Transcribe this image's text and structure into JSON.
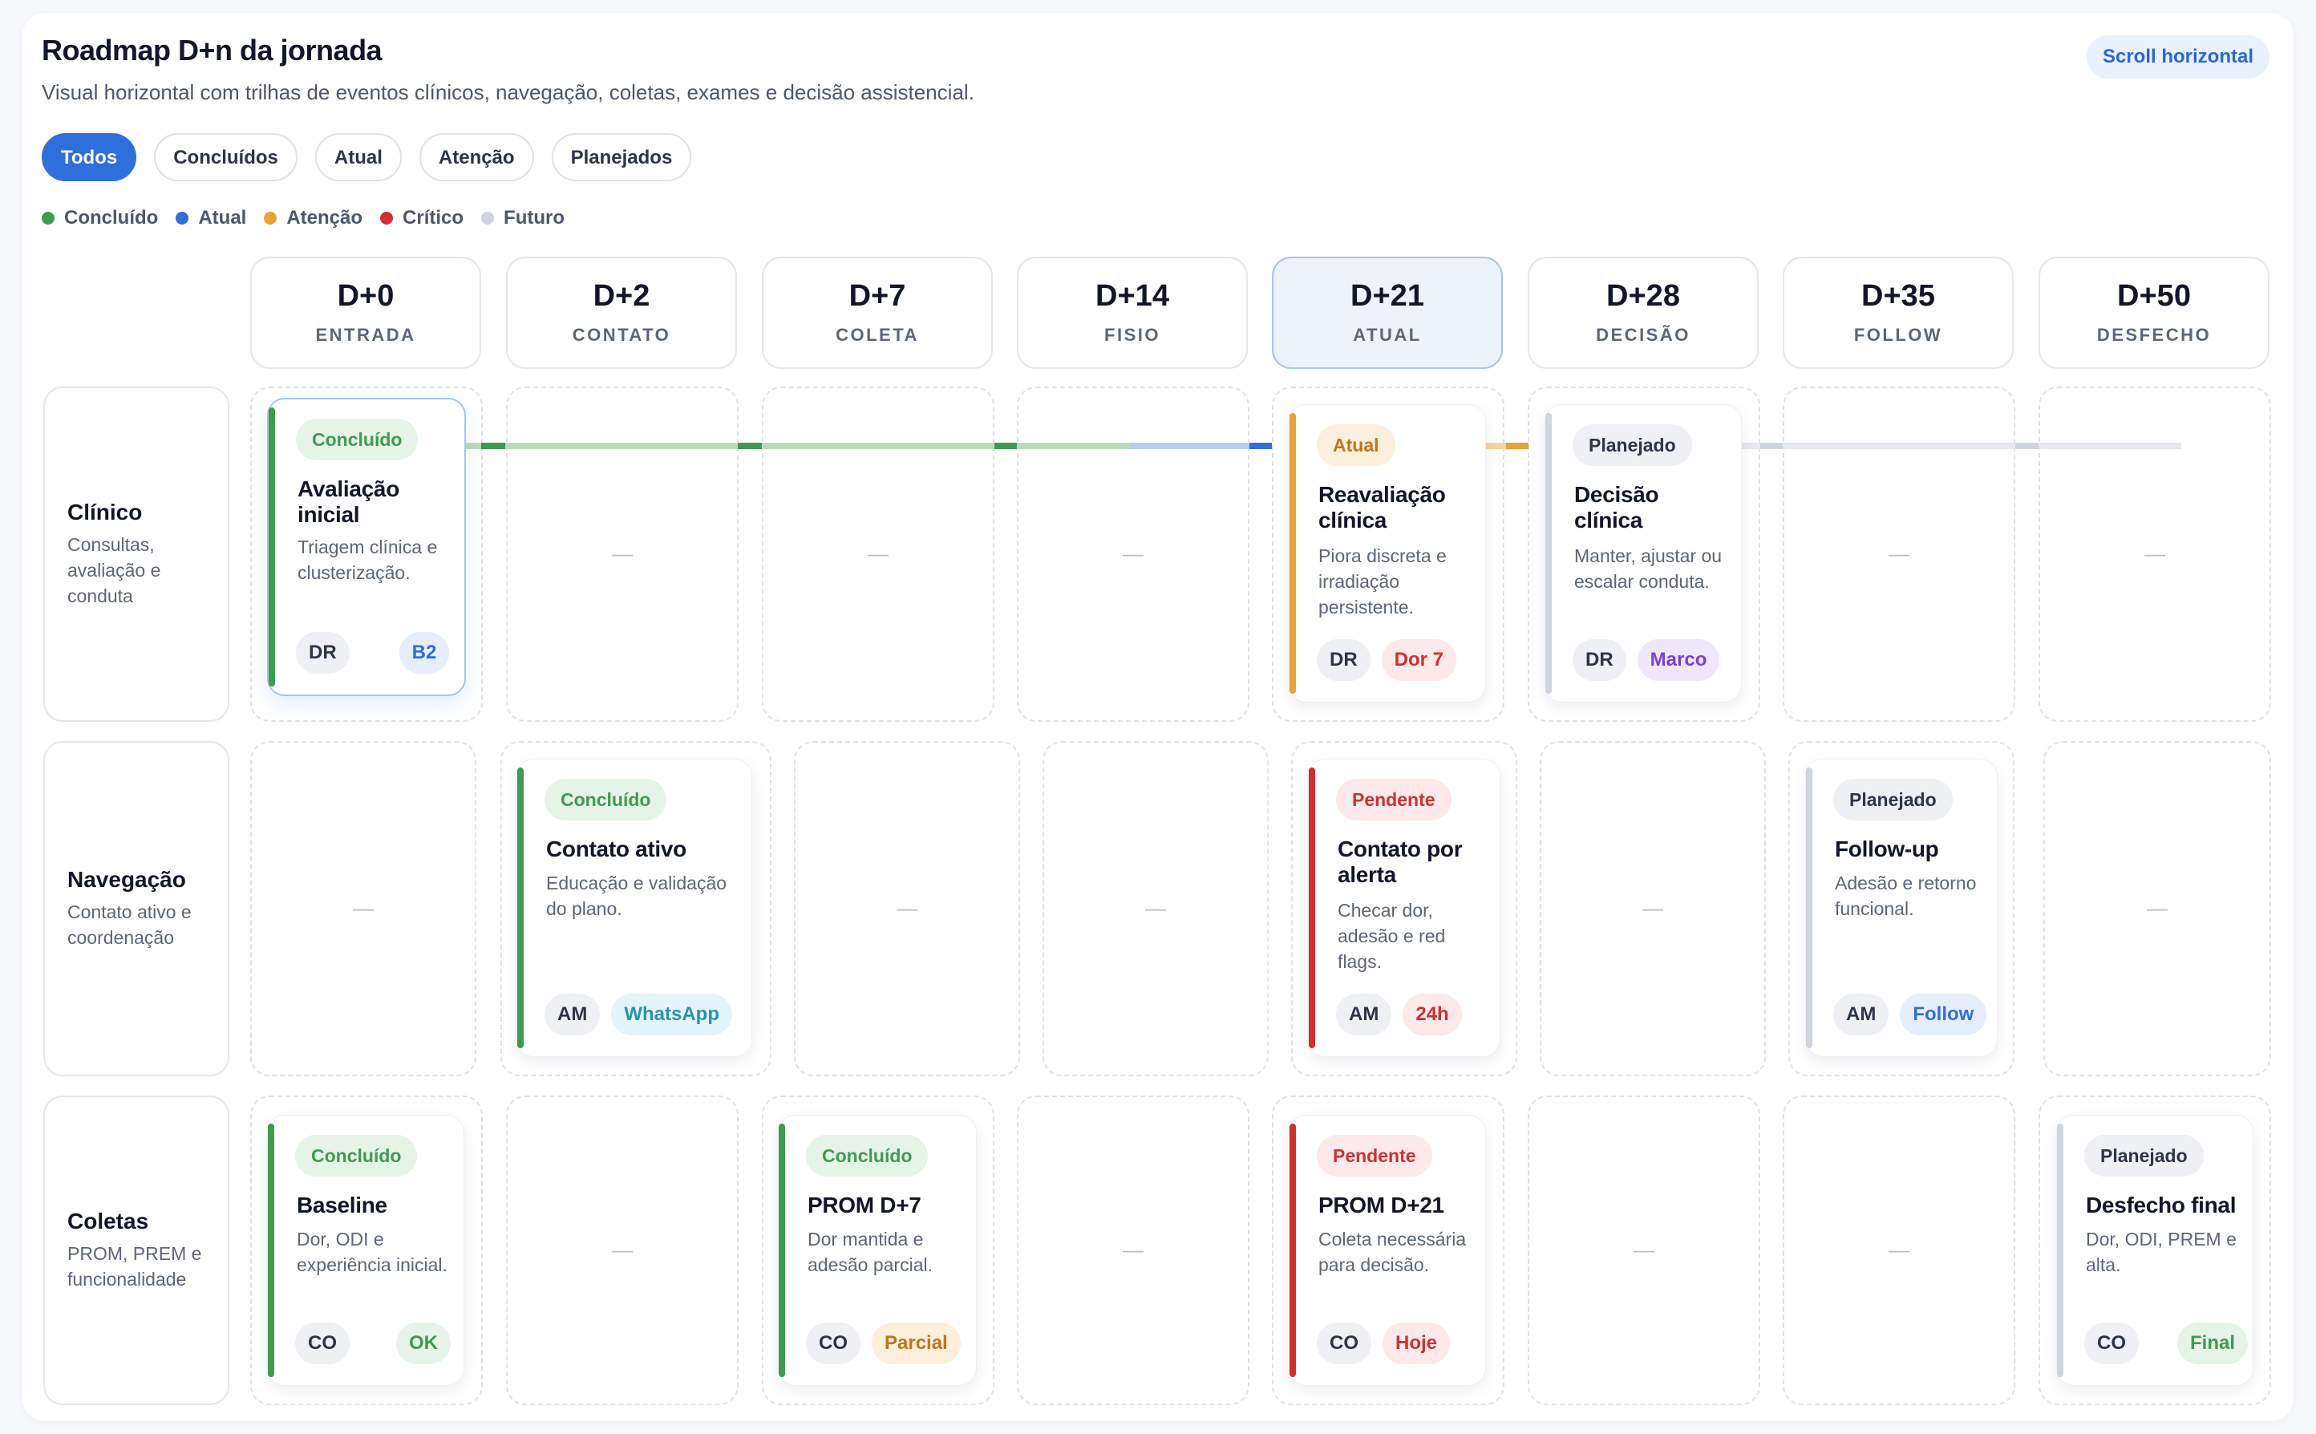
{
  "header": {
    "title": "Roadmap D+n da jornada",
    "subtitle": "Visual horizontal com trilhas de eventos clínicos, navegação, coletas, exames e decisão assistencial.",
    "scroll_badge": "Scroll horizontal"
  },
  "filters": [
    {
      "label": "Todos",
      "active": true
    },
    {
      "label": "Concluídos",
      "active": false
    },
    {
      "label": "Atual",
      "active": false
    },
    {
      "label": "Atenção",
      "active": false
    },
    {
      "label": "Planejados",
      "active": false
    }
  ],
  "legend": [
    {
      "label": "Concluído",
      "color": "#3f9b4f"
    },
    {
      "label": "Atual",
      "color": "#2f6fdc"
    },
    {
      "label": "Atenção",
      "color": "#e6a33a"
    },
    {
      "label": "Crítico",
      "color": "#cf3030"
    },
    {
      "label": "Futuro",
      "color": "#cfd4dd"
    }
  ],
  "columns": [
    {
      "day": "D+0",
      "label": "ENTRADA"
    },
    {
      "day": "D+2",
      "label": "CONTATO"
    },
    {
      "day": "D+7",
      "label": "COLETA"
    },
    {
      "day": "D+14",
      "label": "FISIO"
    },
    {
      "day": "D+21",
      "label": "ATUAL",
      "current": true
    },
    {
      "day": "D+28",
      "label": "DECISÃO"
    },
    {
      "day": "D+35",
      "label": "FOLLOW"
    },
    {
      "day": "D+50",
      "label": "DESFECHO"
    }
  ],
  "empty_marker": "—",
  "rows": [
    {
      "title": "Clínico",
      "description": "Consultas, avaliação e conduta"
    },
    {
      "title": "Navegação",
      "description": "Contato ativo e coordenação"
    },
    {
      "title": "Coletas",
      "description": "PROM, PREM e funcionalidade"
    }
  ],
  "cards": {
    "clinico_d0": {
      "status": "Concluído",
      "title": "Avaliação inicial",
      "description": "Triagem clínica e clusterização.",
      "initials": "DR",
      "tag": "B2"
    },
    "clinico_d21": {
      "status": "Atual",
      "title": "Reavaliação clínica",
      "description": "Piora discreta e irradiação persistente.",
      "initials": "DR",
      "tag": "Dor 7"
    },
    "clinico_d28": {
      "status": "Planejado",
      "title": "Decisão clínica",
      "description": "Manter, ajustar ou escalar conduta.",
      "initials": "DR",
      "tag": "Marco"
    },
    "nav_d2": {
      "status": "Concluído",
      "title": "Contato ativo",
      "description": "Educação e validação do plano.",
      "initials": "AM",
      "tag": "WhatsApp"
    },
    "nav_d21": {
      "status": "Pendente",
      "title": "Contato por alerta",
      "description": "Checar dor, adesão e red flags.",
      "initials": "AM",
      "tag": "24h"
    },
    "nav_d35": {
      "status": "Planejado",
      "title": "Follow-up",
      "description": "Adesão e retorno funcional.",
      "initials": "AM",
      "tag": "Follow"
    },
    "col_d0": {
      "status": "Concluído",
      "title": "Baseline",
      "description": "Dor, ODI e experiência inicial.",
      "initials": "CO",
      "tag": "OK"
    },
    "col_d7": {
      "status": "Concluído",
      "title": "PROM D+7",
      "description": "Dor mantida e adesão parcial.",
      "initials": "CO",
      "tag": "Parcial"
    },
    "col_d21": {
      "status": "Pendente",
      "title": "PROM D+21",
      "description": "Coleta necessária para decisão.",
      "initials": "CO",
      "tag": "Hoje"
    },
    "col_d50": {
      "status": "Planejado",
      "title": "Desfecho final",
      "description": "Dor, ODI, PREM e alta.",
      "initials": "CO",
      "tag": "Final"
    }
  }
}
